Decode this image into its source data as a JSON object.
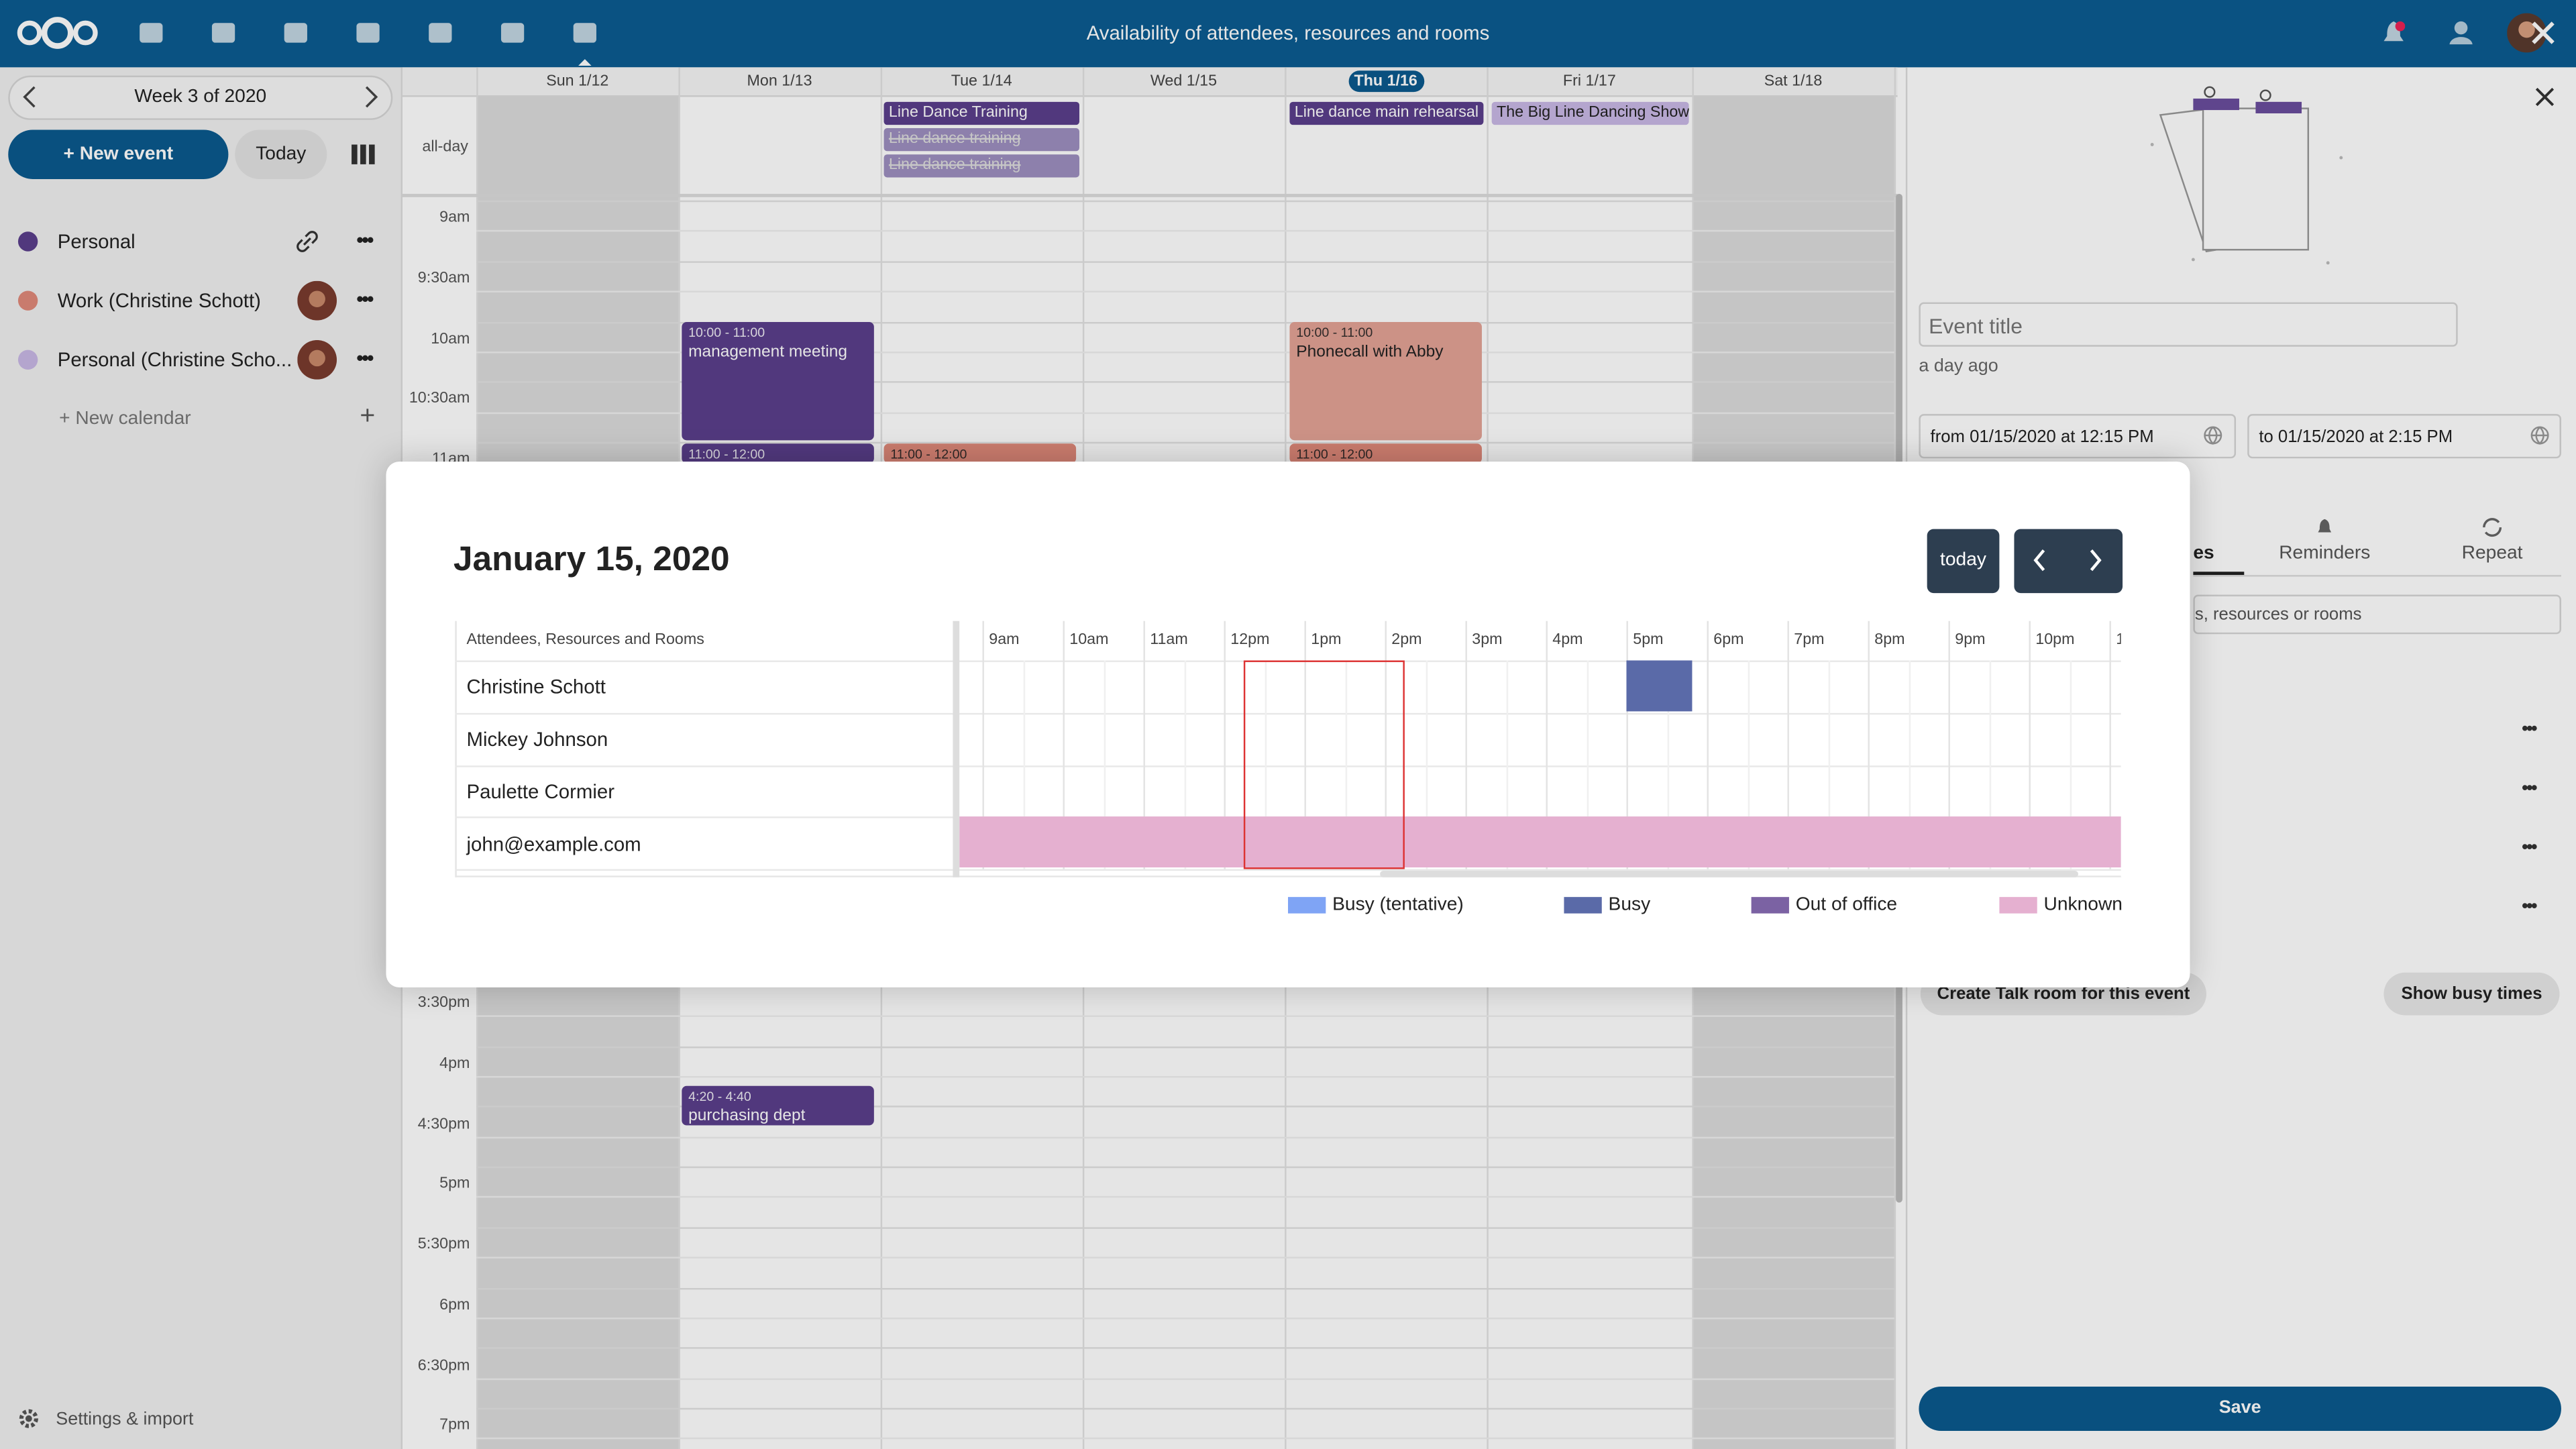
{
  "header": {
    "title": "Availability of attendees, resources and rooms"
  },
  "sidebar": {
    "week": "Week 3 of 2020",
    "new_event": "+ New event",
    "today": "Today",
    "calendars": [
      {
        "name": "Personal",
        "color": "#5b3f8c"
      },
      {
        "name": "Work (Christine Schott)",
        "color": "#e0897a"
      },
      {
        "name": "Personal (Christine Scho...",
        "color": "#c9b8e6"
      }
    ],
    "new_calendar": "+ New calendar",
    "settings": "Settings & import"
  },
  "calendar": {
    "days": [
      "Sun 1/12",
      "Mon 1/13",
      "Tue 1/14",
      "Wed 1/15",
      "Thu 1/16",
      "Fri 1/17",
      "Sat 1/18"
    ],
    "all_day": "all-day",
    "times_morning": [
      "9am",
      "9:30am",
      "10am",
      "10:30am",
      "11am"
    ],
    "times_afternoon": [
      "3:30pm",
      "4pm",
      "4:30pm",
      "5pm",
      "5:30pm",
      "6pm",
      "6:30pm",
      "7pm"
    ],
    "all_day_events": [
      "Line Dance Training",
      "Line dance training",
      "Line dance training",
      "Line dance main rehearsal",
      "The Big Line Dancing Show"
    ],
    "events": [
      {
        "time": "10:00 - 11:00",
        "title": "management meeting"
      },
      {
        "time": "11:00 - 12:00"
      },
      {
        "time": "11:00 - 12:00"
      },
      {
        "time": "10:00 - 11:00",
        "title": "Phonecall with Abby"
      },
      {
        "time": "11:00 - 12:00"
      },
      {
        "time": "4:20 - 4:40",
        "title": "purchasing dept"
      }
    ]
  },
  "modal": {
    "date": "January 15, 2020",
    "today": "today",
    "column_header": "Attendees, Resources and Rooms",
    "hours": [
      "9am",
      "10am",
      "11am",
      "12pm",
      "1pm",
      "2pm",
      "3pm",
      "4pm",
      "5pm",
      "6pm",
      "7pm",
      "8pm",
      "9pm",
      "10pm",
      "1"
    ],
    "attendees": [
      "Christine Schott",
      "Mickey Johnson",
      "Paulette Cormier",
      "john@example.com"
    ],
    "legend": [
      {
        "label": "Busy (tentative)",
        "color": "#7fa4f5"
      },
      {
        "label": "Busy",
        "color": "#5a6aa8"
      },
      {
        "label": "Out of office",
        "color": "#7b62a3"
      },
      {
        "label": "Unknown",
        "color": "#e5b0d0"
      }
    ]
  },
  "details": {
    "title_placeholder": "Event title",
    "updated": "a day ago",
    "from": "from 01/15/2020 at 12:15 PM",
    "to": "to 01/15/2020 at 2:15 PM",
    "tabs": [
      "es",
      "Reminders",
      "Repeat"
    ],
    "attendee_search": "s, resources or rooms",
    "talk": "Create Talk room for this event",
    "busy_times": "Show busy times",
    "save": "Save"
  }
}
